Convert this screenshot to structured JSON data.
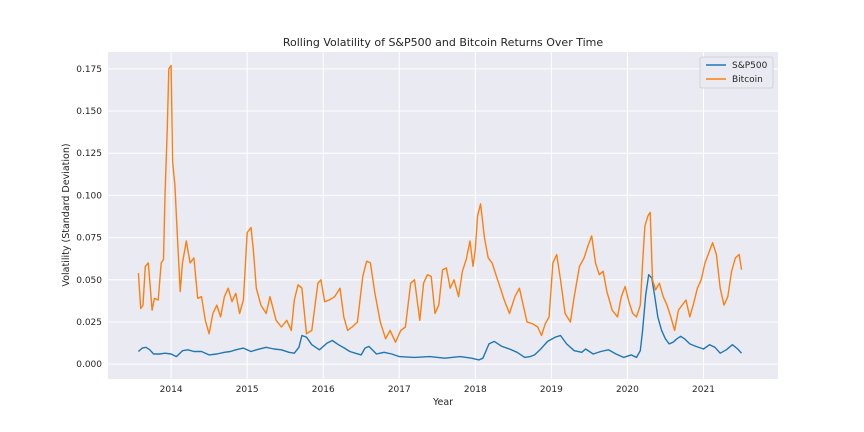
{
  "chart_data": {
    "type": "line",
    "title": "Rolling Volatility of S&P500 and Bitcoin Returns Over Time",
    "xlabel": "Year",
    "ylabel": "Volatility (Standard Deviation)",
    "xlim": [
      2013.17,
      2021.98
    ],
    "ylim": [
      -0.0088,
      0.185
    ],
    "x_ticks": [
      2014,
      2015,
      2016,
      2017,
      2018,
      2019,
      2020,
      2021
    ],
    "x_tick_labels": [
      "2014",
      "2015",
      "2016",
      "2017",
      "2018",
      "2019",
      "2020",
      "2021"
    ],
    "y_ticks": [
      0.0,
      0.025,
      0.05,
      0.075,
      0.1,
      0.125,
      0.15,
      0.175
    ],
    "y_tick_labels": [
      "0.000",
      "0.025",
      "0.050",
      "0.075",
      "0.100",
      "0.125",
      "0.150",
      "0.175"
    ],
    "grid": true,
    "background": "#eaeaf2",
    "legend_position": "upper right",
    "series": [
      {
        "name": "S&P500",
        "color": "#1f77b4",
        "x": [
          2013.57,
          2013.62,
          2013.67,
          2013.72,
          2013.77,
          2013.85,
          2013.92,
          2014.0,
          2014.07,
          2014.15,
          2014.22,
          2014.3,
          2014.4,
          2014.5,
          2014.6,
          2014.7,
          2014.78,
          2014.85,
          2014.95,
          2015.05,
          2015.12,
          2015.25,
          2015.35,
          2015.45,
          2015.55,
          2015.62,
          2015.68,
          2015.72,
          2015.78,
          2015.85,
          2015.95,
          2016.05,
          2016.12,
          2016.2,
          2016.28,
          2016.35,
          2016.42,
          2016.5,
          2016.55,
          2016.6,
          2016.7,
          2016.8,
          2016.9,
          2017.0,
          2017.2,
          2017.4,
          2017.6,
          2017.8,
          2017.95,
          2018.05,
          2018.1,
          2018.18,
          2018.25,
          2018.35,
          2018.45,
          2018.55,
          2018.65,
          2018.72,
          2018.78,
          2018.85,
          2018.95,
          2019.05,
          2019.12,
          2019.2,
          2019.3,
          2019.4,
          2019.45,
          2019.55,
          2019.65,
          2019.75,
          2019.85,
          2019.95,
          2020.05,
          2020.12,
          2020.17,
          2020.2,
          2020.24,
          2020.28,
          2020.32,
          2020.36,
          2020.4,
          2020.45,
          2020.5,
          2020.55,
          2020.6,
          2020.65,
          2020.7,
          2020.75,
          2020.82,
          2020.9,
          2021.0,
          2021.08,
          2021.15,
          2021.22,
          2021.3,
          2021.38,
          2021.45,
          2021.5
        ],
        "y": [
          0.0075,
          0.0095,
          0.01,
          0.0085,
          0.006,
          0.006,
          0.0065,
          0.006,
          0.0045,
          0.008,
          0.0085,
          0.0075,
          0.0075,
          0.0055,
          0.006,
          0.007,
          0.0075,
          0.0085,
          0.0095,
          0.0075,
          0.0085,
          0.01,
          0.009,
          0.0085,
          0.007,
          0.0065,
          0.01,
          0.017,
          0.016,
          0.0115,
          0.0085,
          0.0125,
          0.014,
          0.0115,
          0.0095,
          0.0075,
          0.0065,
          0.0055,
          0.0095,
          0.0105,
          0.006,
          0.007,
          0.006,
          0.0045,
          0.004,
          0.0045,
          0.0035,
          0.0045,
          0.0035,
          0.0025,
          0.0035,
          0.012,
          0.0135,
          0.0105,
          0.009,
          0.007,
          0.004,
          0.0045,
          0.0055,
          0.0085,
          0.0135,
          0.016,
          0.017,
          0.012,
          0.008,
          0.007,
          0.009,
          0.006,
          0.0075,
          0.0085,
          0.006,
          0.004,
          0.0055,
          0.004,
          0.008,
          0.02,
          0.041,
          0.053,
          0.051,
          0.04,
          0.028,
          0.02,
          0.015,
          0.012,
          0.013,
          0.015,
          0.0165,
          0.015,
          0.012,
          0.0105,
          0.009,
          0.0115,
          0.01,
          0.0065,
          0.0085,
          0.0115,
          0.009,
          0.0065
        ]
      },
      {
        "name": "Bitcoin",
        "color": "#ff7f0e",
        "x": [
          2013.57,
          2013.6,
          2013.63,
          2013.66,
          2013.7,
          2013.75,
          2013.78,
          2013.83,
          2013.87,
          2013.9,
          2013.92,
          2013.95,
          2013.97,
          2014.0,
          2014.02,
          2014.05,
          2014.08,
          2014.12,
          2014.15,
          2014.2,
          2014.25,
          2014.3,
          2014.35,
          2014.4,
          2014.45,
          2014.5,
          2014.55,
          2014.6,
          2014.65,
          2014.7,
          2014.75,
          2014.8,
          2014.85,
          2014.9,
          2014.95,
          2015.0,
          2015.05,
          2015.08,
          2015.12,
          2015.18,
          2015.25,
          2015.3,
          2015.38,
          2015.45,
          2015.52,
          2015.58,
          2015.62,
          2015.67,
          2015.72,
          2015.78,
          2015.85,
          2015.93,
          2015.97,
          2016.02,
          2016.08,
          2016.15,
          2016.22,
          2016.27,
          2016.32,
          2016.38,
          2016.45,
          2016.52,
          2016.57,
          2016.62,
          2016.68,
          2016.75,
          2016.82,
          2016.88,
          2016.95,
          2017.02,
          2017.08,
          2017.15,
          2017.2,
          2017.27,
          2017.32,
          2017.37,
          2017.42,
          2017.47,
          2017.52,
          2017.57,
          2017.62,
          2017.67,
          2017.72,
          2017.78,
          2017.83,
          2017.88,
          2017.93,
          2017.97,
          2018.0,
          2018.03,
          2018.07,
          2018.12,
          2018.17,
          2018.22,
          2018.27,
          2018.33,
          2018.38,
          2018.45,
          2018.52,
          2018.58,
          2018.63,
          2018.68,
          2018.75,
          2018.82,
          2018.87,
          2018.92,
          2018.97,
          2019.02,
          2019.07,
          2019.12,
          2019.18,
          2019.25,
          2019.3,
          2019.37,
          2019.43,
          2019.48,
          2019.53,
          2019.58,
          2019.63,
          2019.68,
          2019.73,
          2019.8,
          2019.87,
          2019.92,
          2019.97,
          2020.02,
          2020.07,
          2020.12,
          2020.17,
          2020.2,
          2020.23,
          2020.27,
          2020.3,
          2020.33,
          2020.37,
          2020.42,
          2020.47,
          2020.52,
          2020.57,
          2020.62,
          2020.67,
          2020.72,
          2020.77,
          2020.82,
          2020.87,
          2020.92,
          2020.97,
          2021.02,
          2021.07,
          2021.12,
          2021.17,
          2021.22,
          2021.27,
          2021.32,
          2021.37,
          2021.42,
          2021.47,
          2021.5
        ],
        "y": [
          0.054,
          0.033,
          0.035,
          0.058,
          0.06,
          0.032,
          0.039,
          0.038,
          0.06,
          0.062,
          0.1,
          0.14,
          0.175,
          0.177,
          0.12,
          0.106,
          0.078,
          0.043,
          0.06,
          0.073,
          0.06,
          0.063,
          0.039,
          0.04,
          0.026,
          0.018,
          0.03,
          0.035,
          0.028,
          0.04,
          0.045,
          0.037,
          0.042,
          0.03,
          0.038,
          0.078,
          0.081,
          0.068,
          0.045,
          0.035,
          0.03,
          0.04,
          0.026,
          0.022,
          0.026,
          0.02,
          0.038,
          0.047,
          0.045,
          0.018,
          0.02,
          0.048,
          0.05,
          0.037,
          0.038,
          0.04,
          0.045,
          0.028,
          0.02,
          0.022,
          0.025,
          0.052,
          0.061,
          0.06,
          0.042,
          0.025,
          0.015,
          0.02,
          0.013,
          0.02,
          0.022,
          0.048,
          0.05,
          0.026,
          0.048,
          0.053,
          0.052,
          0.03,
          0.035,
          0.056,
          0.057,
          0.045,
          0.05,
          0.04,
          0.055,
          0.062,
          0.073,
          0.058,
          0.068,
          0.088,
          0.095,
          0.075,
          0.063,
          0.06,
          0.053,
          0.045,
          0.038,
          0.03,
          0.04,
          0.045,
          0.035,
          0.025,
          0.024,
          0.022,
          0.017,
          0.024,
          0.028,
          0.06,
          0.065,
          0.05,
          0.03,
          0.025,
          0.04,
          0.058,
          0.063,
          0.07,
          0.076,
          0.06,
          0.053,
          0.055,
          0.043,
          0.032,
          0.028,
          0.04,
          0.046,
          0.037,
          0.03,
          0.028,
          0.035,
          0.06,
          0.082,
          0.088,
          0.09,
          0.05,
          0.044,
          0.048,
          0.04,
          0.035,
          0.028,
          0.02,
          0.032,
          0.035,
          0.038,
          0.028,
          0.036,
          0.045,
          0.05,
          0.06,
          0.066,
          0.072,
          0.065,
          0.045,
          0.035,
          0.04,
          0.055,
          0.063,
          0.065,
          0.056
        ]
      }
    ]
  }
}
